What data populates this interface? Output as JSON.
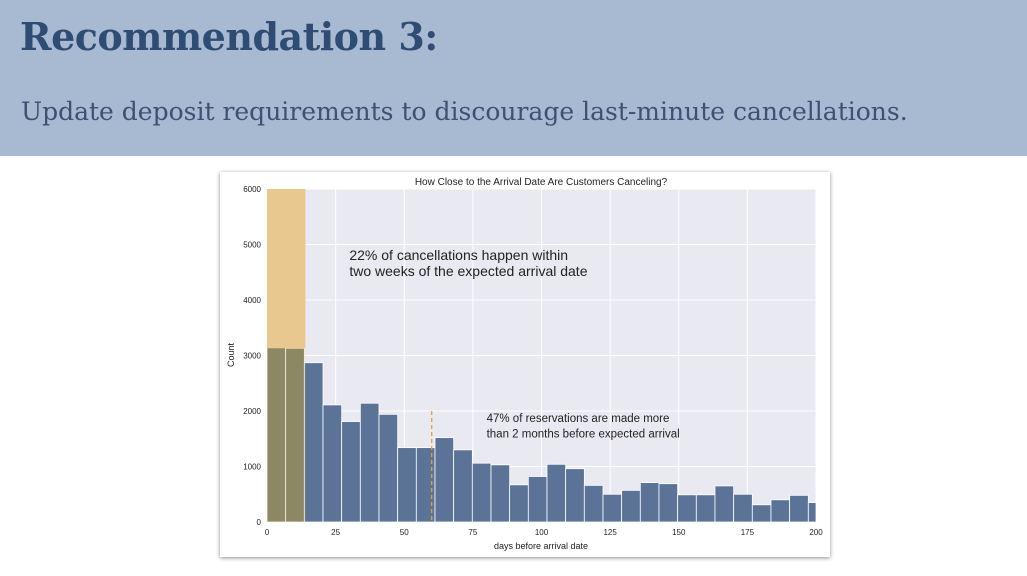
{
  "slide": {
    "title": "Recommendation 3:",
    "subtitle": "Update deposit requirements to discourage last-minute cancellations."
  },
  "colors": {
    "header_bg": "#a8b9d2",
    "title": "#2f4d74",
    "bar": "#5a7397",
    "highlight": "#e8c98e",
    "overlap": "#6e7356",
    "plot_bg": "#e9e9f1",
    "median_line": "#e1a23a"
  },
  "chart_data": {
    "type": "bar",
    "title": "How Close to the Arrival Date Are Customers Canceling?",
    "xlabel": "days before arrival date",
    "ylabel": "Count",
    "xlim": [
      0,
      200
    ],
    "ylim": [
      0,
      6000
    ],
    "xticks": [
      0,
      25,
      50,
      75,
      100,
      125,
      150,
      175,
      200
    ],
    "yticks": [
      0,
      1000,
      2000,
      3000,
      4000,
      5000,
      6000
    ],
    "grid": true,
    "bin_width": 6.8,
    "bin_starts": [
      0,
      6.8,
      13.6,
      20.4,
      27.2,
      34,
      40.8,
      47.6,
      54.4,
      61.2,
      68,
      74.8,
      81.6,
      88.4,
      95.2,
      102,
      108.8,
      115.6,
      122.4,
      129.2,
      136,
      142.8,
      149.6,
      156.4,
      163.2,
      170,
      176.8,
      183.6,
      190.4,
      197.2
    ],
    "values": [
      5720,
      3130,
      2870,
      2110,
      1810,
      2140,
      1940,
      1340,
      1340,
      1520,
      1300,
      1060,
      1030,
      670,
      820,
      1040,
      960,
      660,
      500,
      570,
      710,
      690,
      490,
      490,
      650,
      500,
      310,
      400,
      480,
      350
    ],
    "highlight_range": [
      0,
      14
    ],
    "reference_line": {
      "x": 60,
      "y_top": 2000
    },
    "annotations": [
      {
        "text": "22% of cancellations happen within",
        "x": 30,
        "y": 4720
      },
      {
        "text": "two weeks of the expected arrival date",
        "x": 30,
        "y": 4430
      },
      {
        "text": "47% of reservations are made more",
        "x": 80,
        "y": 1800
      },
      {
        "text": "than 2 months before expected arrival",
        "x": 80,
        "y": 1520
      }
    ]
  }
}
